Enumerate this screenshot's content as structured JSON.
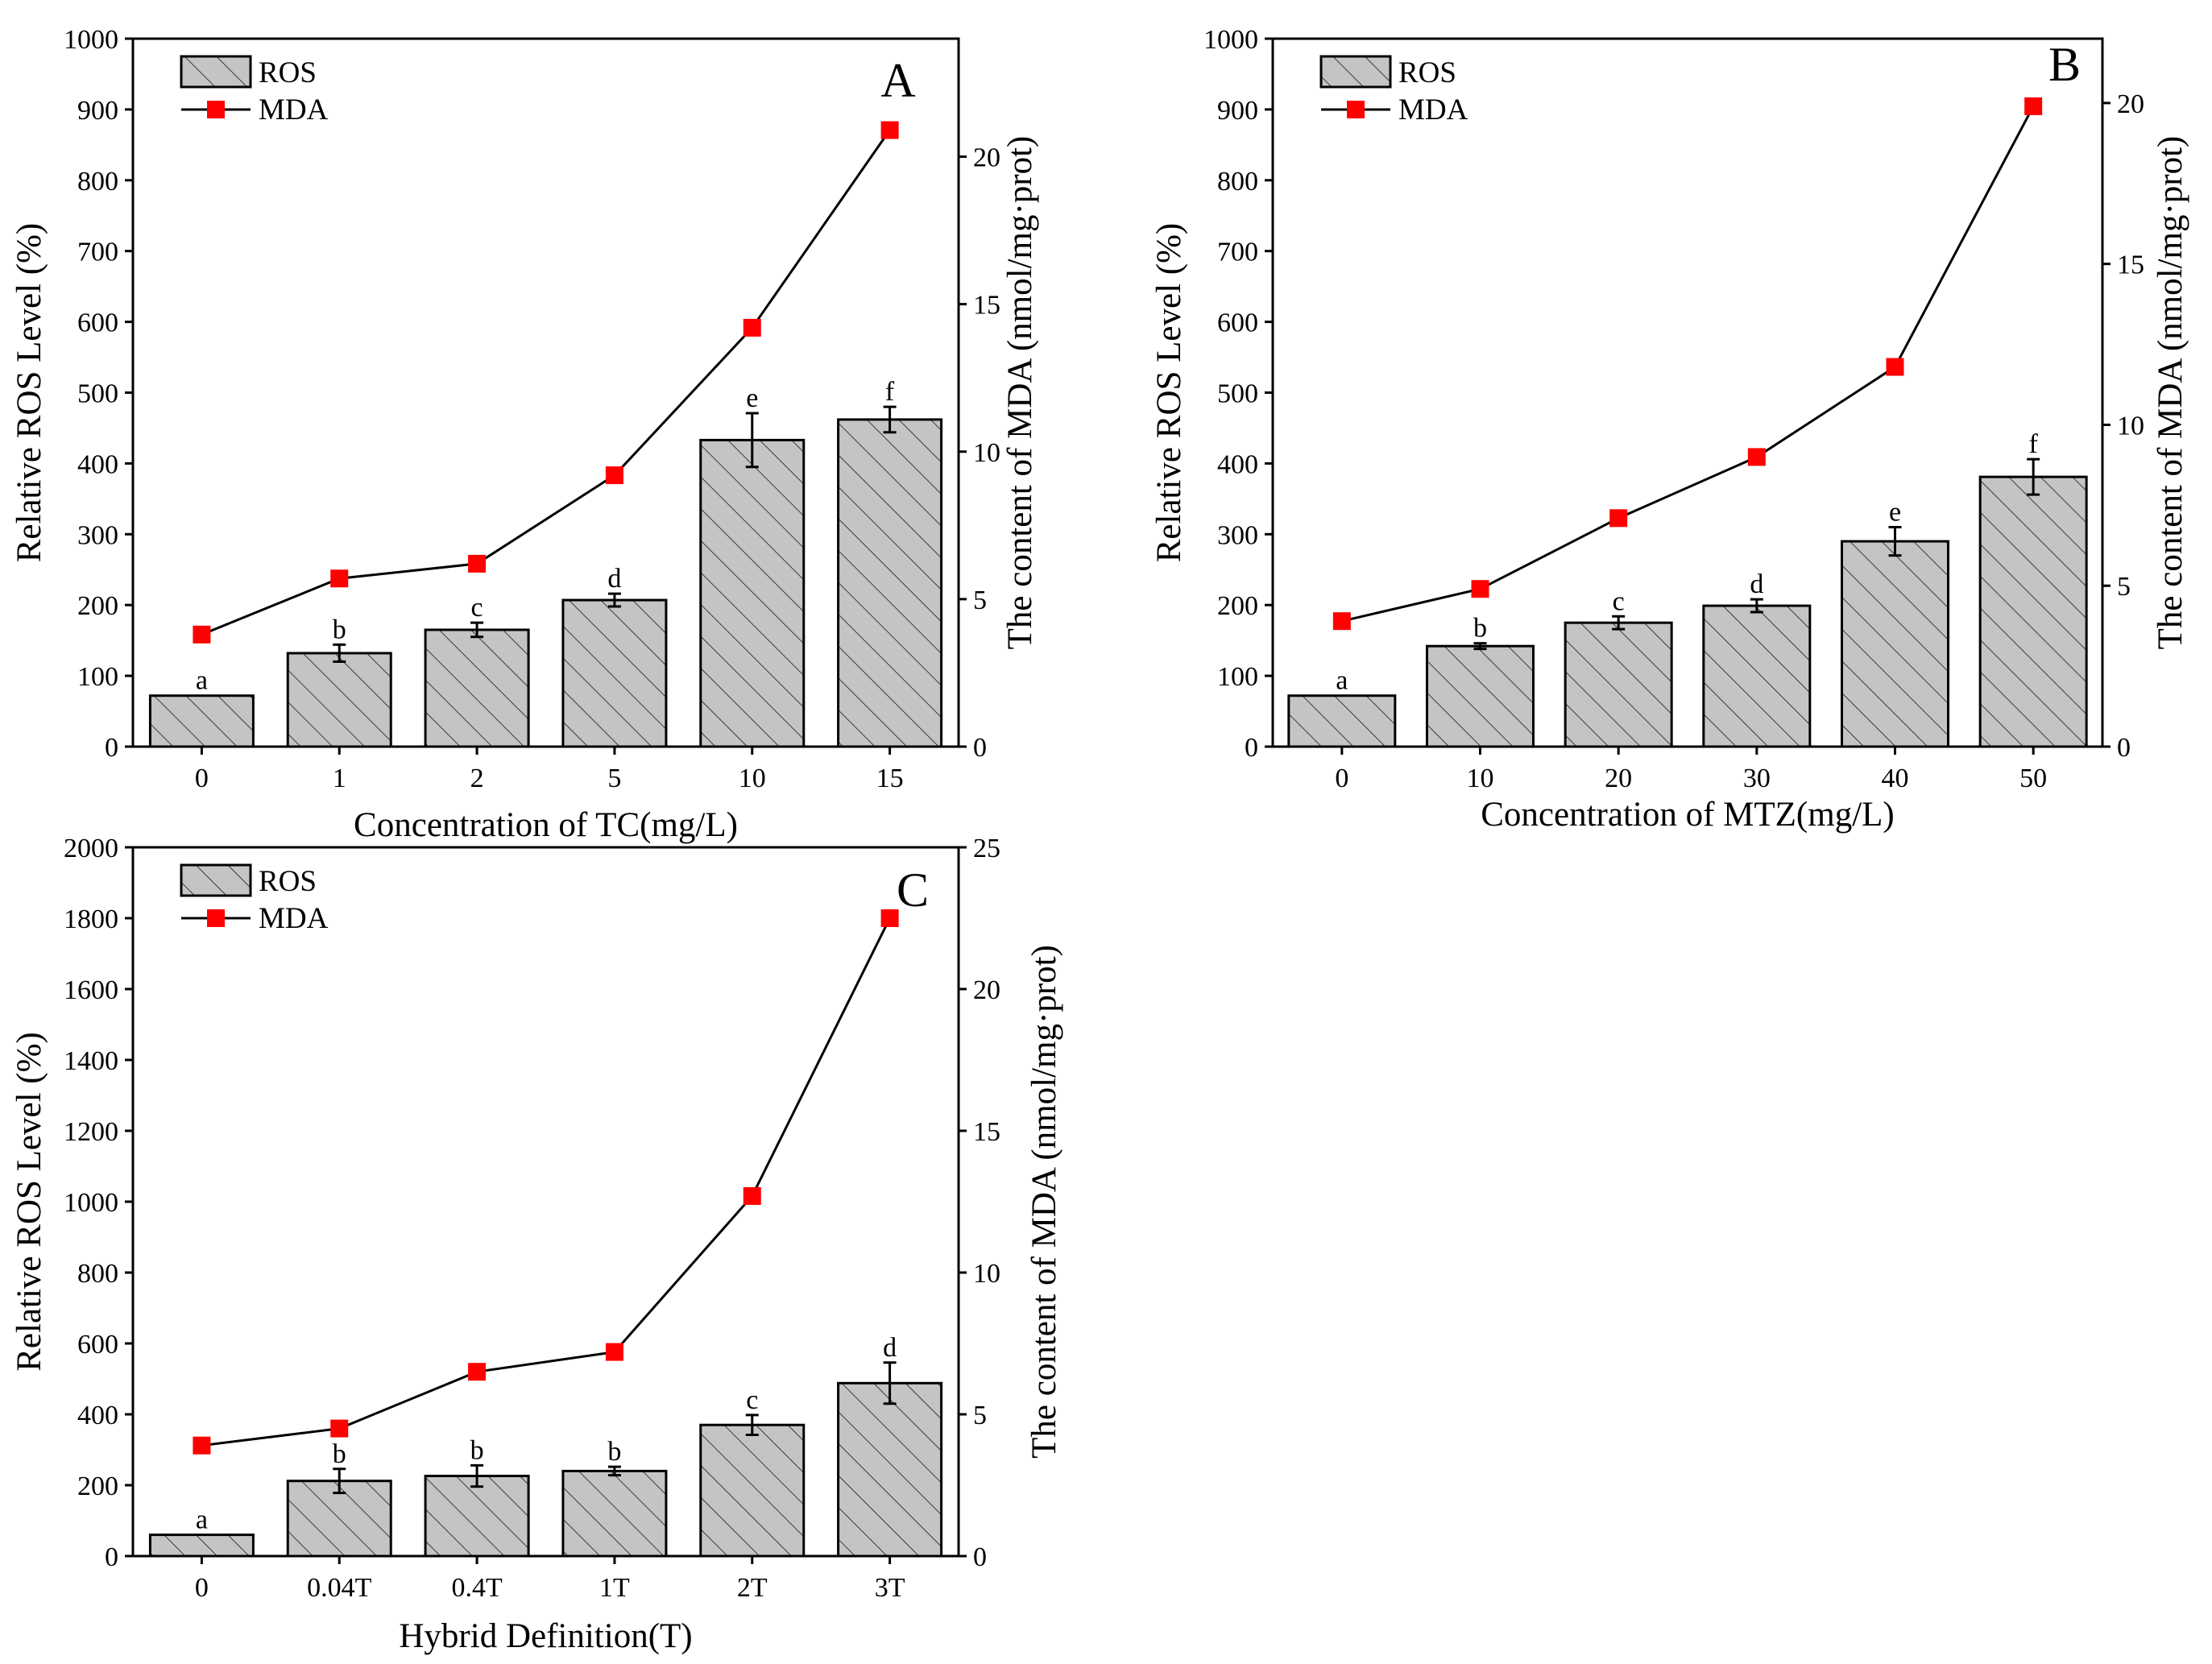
{
  "chart_data": [
    {
      "panel": "A",
      "type": "bar+line",
      "xlabel": "Concentration of TC(mg/L)",
      "ylabel": "Relative ROS Level (%)",
      "y2label": "The content of  MDA (nmol/mg·prot)",
      "categories": [
        "0",
        "1",
        "2",
        "5",
        "10",
        "15"
      ],
      "ylim": [
        0,
        1000
      ],
      "yticks": [
        0,
        100,
        200,
        300,
        400,
        500,
        600,
        700,
        800,
        900,
        1000
      ],
      "y2lim": [
        0,
        24
      ],
      "y2ticks": [
        0,
        5,
        10,
        15,
        20
      ],
      "series": [
        {
          "name": "ROS",
          "kind": "bar",
          "axis": "left",
          "values": [
            72,
            132,
            165,
            207,
            433,
            462
          ],
          "errors": [
            0,
            12,
            10,
            9,
            38,
            18
          ],
          "labels": [
            "a",
            "b",
            "c",
            "d",
            "e",
            "f"
          ]
        },
        {
          "name": "MDA",
          "kind": "line",
          "axis": "right",
          "values": [
            3.8,
            5.7,
            6.2,
            9.2,
            14.2,
            20.9
          ]
        }
      ],
      "legend": {
        "position": "top-left",
        "entries": [
          "ROS",
          "MDA"
        ]
      }
    },
    {
      "panel": "B",
      "type": "bar+line",
      "xlabel": "Concentration of MTZ(mg/L)",
      "ylabel": "Relative ROS Level (%)",
      "y2label": "The content of  MDA (nmol/mg·prot)",
      "categories": [
        "0",
        "10",
        "20",
        "30",
        "40",
        "50"
      ],
      "ylim": [
        0,
        1000
      ],
      "yticks": [
        0,
        100,
        200,
        300,
        400,
        500,
        600,
        700,
        800,
        900,
        1000
      ],
      "y2lim": [
        0,
        22
      ],
      "y2ticks": [
        0,
        5,
        10,
        15,
        20
      ],
      "series": [
        {
          "name": "ROS",
          "kind": "bar",
          "axis": "left",
          "values": [
            72,
            142,
            175,
            199,
            290,
            381
          ],
          "errors": [
            0,
            4,
            9,
            9,
            20,
            25
          ],
          "labels": [
            "a",
            "b",
            "c",
            "d",
            "e",
            "f"
          ]
        },
        {
          "name": "MDA",
          "kind": "line",
          "axis": "right",
          "values": [
            3.9,
            4.9,
            7.1,
            9.0,
            11.8,
            19.9
          ]
        }
      ],
      "legend": {
        "position": "top-left",
        "entries": [
          "ROS",
          "MDA"
        ]
      }
    },
    {
      "panel": "C",
      "type": "bar+line",
      "xlabel": "Hybrid Definition(T)",
      "ylabel": "Relative ROS Level (%)",
      "y2label": "The content of  MDA (nmol/mg·prot)",
      "categories": [
        "0",
        "0.04T",
        "0.4T",
        "1T",
        "2T",
        "3T"
      ],
      "ylim": [
        0,
        2000
      ],
      "yticks": [
        0,
        200,
        400,
        600,
        800,
        1000,
        1200,
        1400,
        1600,
        1800,
        2000
      ],
      "y2lim": [
        0,
        25
      ],
      "y2ticks": [
        0,
        5,
        10,
        15,
        20,
        25
      ],
      "series": [
        {
          "name": "ROS",
          "kind": "bar",
          "axis": "left",
          "values": [
            60,
            212,
            226,
            240,
            370,
            488
          ],
          "errors": [
            0,
            34,
            30,
            12,
            28,
            58
          ],
          "labels": [
            "a",
            "b",
            "b",
            "b",
            "c",
            "d"
          ]
        },
        {
          "name": "MDA",
          "kind": "line",
          "axis": "right",
          "values": [
            3.9,
            4.5,
            6.5,
            7.2,
            12.7,
            22.5
          ]
        }
      ],
      "legend": {
        "position": "top-left",
        "entries": [
          "ROS",
          "MDA"
        ]
      }
    }
  ],
  "colors": {
    "bar_fill": "#c4c4c4",
    "bar_stroke": "#000000",
    "hatch": "#3a3a3a",
    "line": "#000000",
    "marker": "#ff0000"
  }
}
